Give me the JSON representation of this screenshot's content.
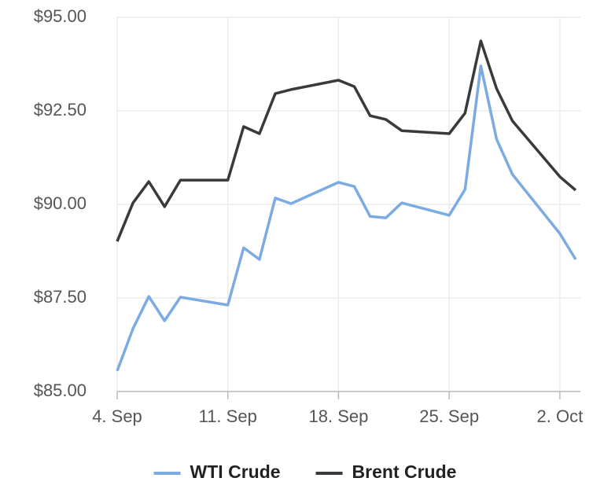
{
  "chart_data": {
    "type": "line",
    "x": [
      "4. Sep",
      "5. Sep",
      "6. Sep",
      "7. Sep",
      "8. Sep",
      "11. Sep",
      "12. Sep",
      "13. Sep",
      "14. Sep",
      "15. Sep",
      "18. Sep",
      "19. Sep",
      "20. Sep",
      "21. Sep",
      "22. Sep",
      "25. Sep",
      "26. Sep",
      "27. Sep",
      "28. Sep",
      "29. Sep",
      "2. Oct",
      "3. Oct"
    ],
    "series": [
      {
        "name": "WTI Crude",
        "color": "#7cabe2",
        "values": [
          85.55,
          86.68,
          87.54,
          86.89,
          87.52,
          87.31,
          88.84,
          88.53,
          90.17,
          90.02,
          90.59,
          90.48,
          89.68,
          89.64,
          90.04,
          89.71,
          90.4,
          93.7,
          91.74,
          90.8,
          89.22,
          88.53
        ]
      },
      {
        "name": "Brent Crude",
        "color": "#3a3a3e",
        "values": [
          89.01,
          90.04,
          90.61,
          89.94,
          90.65,
          90.65,
          92.08,
          91.89,
          92.96,
          93.07,
          93.32,
          93.15,
          92.37,
          92.27,
          91.97,
          91.89,
          92.44,
          94.37,
          93.09,
          92.23,
          90.74,
          90.38
        ]
      }
    ],
    "xlim": [
      "4. Sep",
      "3. Oct"
    ],
    "xticks": [
      "4. Sep",
      "11. Sep",
      "18. Sep",
      "25. Sep",
      "2. Oct"
    ],
    "ylim": [
      85,
      95
    ],
    "yticks": [
      {
        "value": 85,
        "label": "$85.00"
      },
      {
        "value": 87.5,
        "label": "$87.50"
      },
      {
        "value": 90,
        "label": "$90.00"
      },
      {
        "value": 92.5,
        "label": "$92.50"
      },
      {
        "value": 95,
        "label": "$95.00"
      }
    ],
    "grid": true,
    "legend": "bottom"
  }
}
